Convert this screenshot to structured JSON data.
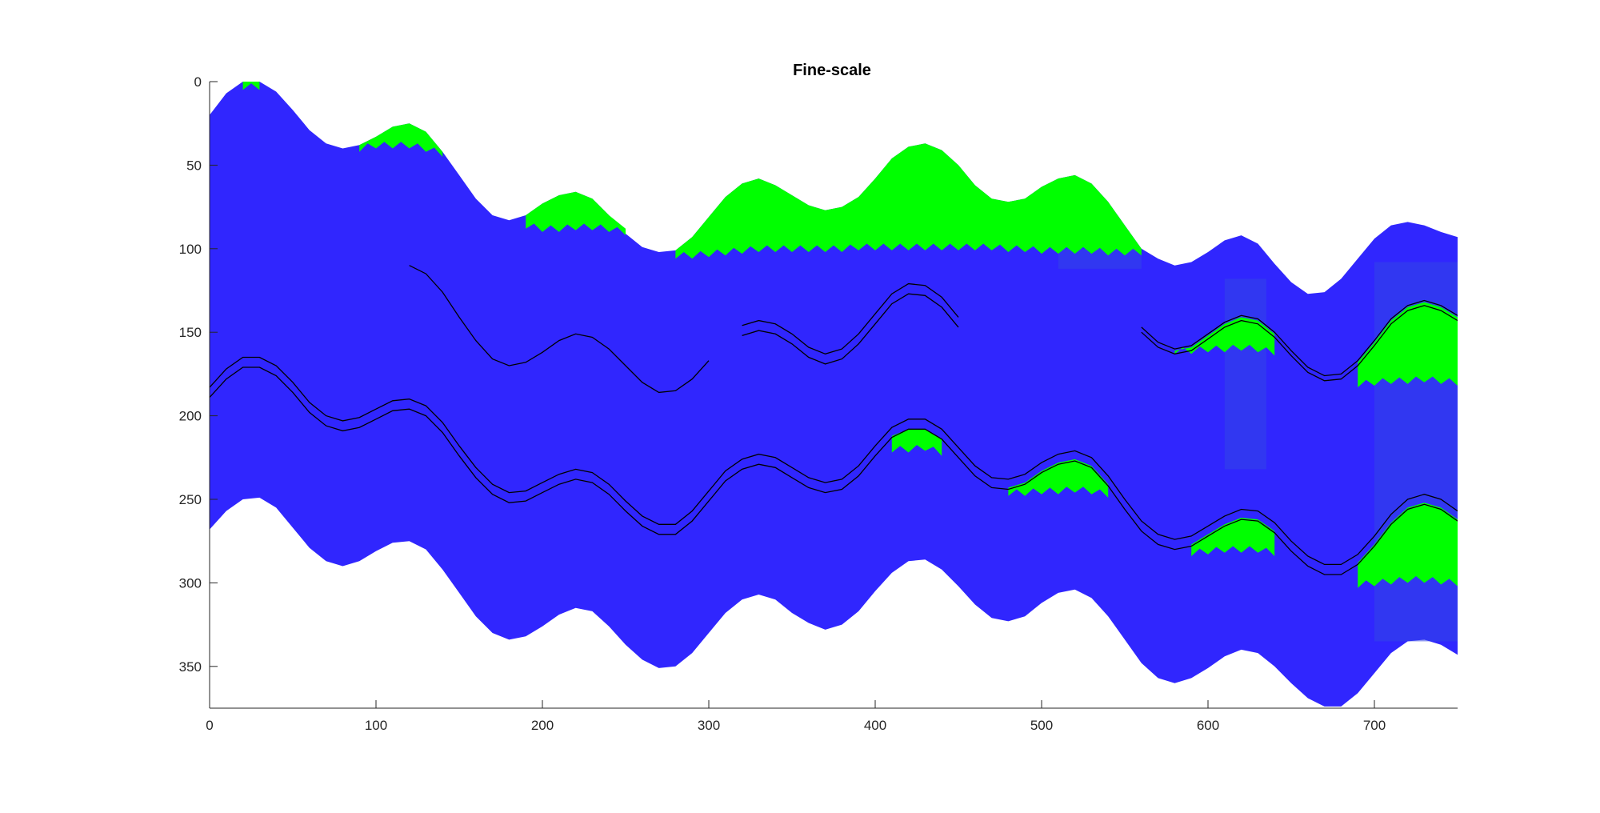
{
  "chart_data": {
    "type": "area",
    "title": "Fine-scale",
    "xlabel": "",
    "ylabel": "",
    "xlim": [
      0,
      750
    ],
    "ylim": [
      0,
      375
    ],
    "y_reversed": true,
    "grid": false,
    "legend": "none",
    "xticks": [
      0,
      100,
      200,
      300,
      400,
      500,
      600,
      700
    ],
    "yticks": [
      0,
      50,
      100,
      150,
      200,
      250,
      300,
      350
    ],
    "colors": {
      "domain": "#3026FE",
      "overlay": "#3346E6",
      "feature": "#00FF00",
      "contour": "#000000",
      "axis": "#262626"
    },
    "domain_top": {
      "x": [
        0,
        10,
        20,
        30,
        40,
        50,
        60,
        70,
        80,
        90,
        100,
        110,
        120,
        130,
        140,
        150,
        160,
        170,
        180,
        190,
        200,
        210,
        220,
        230,
        240,
        250,
        260,
        270,
        280,
        290,
        300,
        310,
        320,
        330,
        340,
        350,
        360,
        370,
        380,
        390,
        400,
        410,
        420,
        430,
        440,
        450,
        460,
        470,
        480,
        490,
        500,
        510,
        520,
        530,
        540,
        550,
        560,
        570,
        580,
        590,
        600,
        610,
        620,
        630,
        640,
        650,
        660,
        670,
        680,
        690,
        700,
        710,
        720,
        730,
        740,
        750
      ],
      "y": [
        20,
        7,
        0,
        0,
        6,
        17,
        29,
        37,
        40,
        38,
        33,
        27,
        25,
        30,
        42,
        56,
        70,
        80,
        83,
        80,
        73,
        68,
        66,
        70,
        80,
        91,
        99,
        102,
        101,
        93,
        81,
        69,
        61,
        58,
        62,
        68,
        74,
        77,
        75,
        69,
        58,
        46,
        39,
        37,
        41,
        50,
        62,
        70,
        72,
        70,
        63,
        58,
        56,
        61,
        72,
        86,
        100,
        106,
        110,
        108,
        102,
        95,
        92,
        97,
        109,
        120,
        127,
        126,
        118,
        106,
        94,
        86,
        84,
        86,
        90,
        93
      ]
    },
    "domain_bottom": {
      "x": [
        0,
        10,
        20,
        30,
        40,
        50,
        60,
        70,
        80,
        90,
        100,
        110,
        120,
        130,
        140,
        150,
        160,
        170,
        180,
        190,
        200,
        210,
        220,
        230,
        240,
        250,
        260,
        270,
        280,
        290,
        300,
        310,
        320,
        330,
        340,
        350,
        360,
        370,
        380,
        390,
        400,
        410,
        420,
        430,
        440,
        450,
        460,
        470,
        480,
        490,
        500,
        510,
        520,
        530,
        540,
        550,
        560,
        570,
        580,
        590,
        600,
        610,
        620,
        630,
        640,
        650,
        660,
        670,
        680,
        690,
        700,
        710,
        720,
        730,
        740,
        750
      ],
      "y": [
        268,
        257,
        250,
        249,
        255,
        267,
        279,
        287,
        290,
        287,
        281,
        276,
        275,
        280,
        292,
        306,
        320,
        330,
        334,
        332,
        326,
        319,
        315,
        317,
        326,
        337,
        346,
        351,
        350,
        342,
        330,
        318,
        310,
        307,
        310,
        318,
        324,
        328,
        325,
        317,
        305,
        294,
        287,
        286,
        292,
        302,
        313,
        321,
        323,
        320,
        312,
        306,
        304,
        309,
        320,
        334,
        348,
        357,
        360,
        357,
        351,
        344,
        340,
        342,
        350,
        360,
        369,
        374,
        374,
        366,
        354,
        342,
        335,
        334,
        337,
        343
      ]
    },
    "upper_line": {
      "x": [
        120,
        130,
        140,
        150,
        160,
        170,
        180,
        190,
        200,
        210,
        220,
        230,
        240,
        250,
        260,
        270,
        280,
        290,
        300
      ],
      "y": [
        110,
        115,
        126,
        141,
        155,
        166,
        170,
        168,
        162,
        155,
        151,
        153,
        160,
        170,
        180,
        186,
        185,
        178,
        167
      ]
    },
    "upper_band_mid": {
      "x": [
        320,
        330,
        340,
        350,
        360,
        370,
        380,
        390,
        400,
        410,
        420,
        430,
        440,
        450
      ],
      "y": [
        149,
        146,
        148,
        154,
        162,
        166,
        163,
        154,
        142,
        130,
        124,
        125,
        132,
        144
      ]
    },
    "upper_band_right": {
      "x": [
        560,
        570,
        580,
        590,
        600,
        610,
        620,
        630,
        640,
        650,
        660,
        670,
        680,
        690,
        700,
        710,
        720,
        730,
        740,
        750
      ],
      "y": [
        148,
        157,
        161,
        159,
        152,
        145,
        141,
        143,
        151,
        162,
        172,
        177,
        176,
        168,
        156,
        143,
        135,
        132,
        135,
        141
      ]
    },
    "lower_band": {
      "x": [
        0,
        10,
        20,
        30,
        40,
        50,
        60,
        70,
        80,
        90,
        100,
        110,
        120,
        130,
        140,
        150,
        160,
        170,
        180,
        190,
        200,
        210,
        220,
        230,
        240,
        250,
        260,
        270,
        280,
        290,
        300,
        310,
        320,
        330,
        340,
        350,
        360,
        370,
        380,
        390,
        400,
        410,
        420,
        430,
        440,
        450,
        460,
        470,
        480,
        490,
        500,
        510,
        520,
        530,
        540,
        550,
        560,
        570,
        580,
        590,
        600,
        610,
        620,
        630,
        640,
        650,
        660,
        670,
        680,
        690,
        700,
        710,
        720,
        730,
        740,
        750
      ],
      "y": [
        186,
        175,
        168,
        168,
        173,
        183,
        195,
        203,
        206,
        204,
        199,
        194,
        193,
        197,
        207,
        221,
        234,
        244,
        249,
        248,
        243,
        238,
        235,
        237,
        244,
        254,
        263,
        268,
        268,
        260,
        248,
        236,
        229,
        226,
        228,
        234,
        240,
        243,
        241,
        233,
        221,
        210,
        205,
        205,
        211,
        222,
        233,
        240,
        241,
        238,
        231,
        226,
        224,
        228,
        239,
        253,
        266,
        274,
        277,
        275,
        269,
        263,
        259,
        260,
        267,
        278,
        287,
        292,
        292,
        286,
        275,
        262,
        253,
        250,
        253,
        260
      ]
    },
    "feature_patches": [
      {
        "x": [
          20,
          30
        ],
        "top": [
          0,
          0
        ],
        "bottom": [
          5,
          5
        ]
      },
      {
        "x": [
          90,
          100,
          110,
          120,
          130,
          140
        ],
        "top": [
          38,
          33,
          27,
          25,
          30,
          42
        ],
        "bottom": [
          42,
          40,
          40,
          40,
          42,
          45
        ]
      },
      {
        "x": [
          190,
          200,
          210,
          220,
          230,
          240,
          250
        ],
        "top": [
          80,
          73,
          68,
          66,
          70,
          80,
          88
        ],
        "bottom": [
          88,
          90,
          90,
          89,
          89,
          90,
          92
        ]
      },
      {
        "x": [
          280,
          290,
          300,
          310,
          320,
          330,
          340,
          350,
          360,
          370,
          380,
          390,
          400,
          410,
          420,
          430,
          440,
          450,
          460,
          470,
          480,
          490,
          500,
          510,
          520,
          530,
          540,
          550,
          560
        ],
        "top": [
          101,
          93,
          81,
          69,
          61,
          58,
          62,
          68,
          74,
          77,
          75,
          69,
          58,
          46,
          39,
          37,
          41,
          50,
          62,
          70,
          72,
          70,
          63,
          58,
          56,
          61,
          72,
          86,
          100
        ],
        "bottom": [
          106,
          106,
          105,
          104,
          103,
          102,
          102,
          102,
          102,
          102,
          102,
          101,
          101,
          101,
          101,
          101,
          101,
          101,
          101,
          101,
          102,
          102,
          103,
          103,
          103,
          103,
          104,
          104,
          104
        ]
      },
      {
        "x": [
          580,
          590,
          600,
          610,
          620,
          630,
          640
        ],
        "top": [
          161,
          159,
          152,
          145,
          141,
          143,
          151
        ],
        "bottom": [
          163,
          163,
          162,
          162,
          161,
          162,
          164
        ]
      },
      {
        "x": [
          690,
          700,
          710,
          720,
          730,
          740,
          750
        ],
        "top": [
          168,
          156,
          143,
          135,
          132,
          135,
          141
        ],
        "bottom": [
          183,
          182,
          181,
          181,
          180,
          181,
          182
        ]
      },
      {
        "x": [
          410,
          420,
          430,
          440
        ],
        "top": [
          212,
          208,
          208,
          214
        ],
        "bottom": [
          222,
          222,
          221,
          224
        ]
      },
      {
        "x": [
          480,
          490,
          500,
          510,
          520,
          530,
          540
        ],
        "top": [
          243,
          240,
          233,
          228,
          226,
          230,
          241
        ],
        "bottom": [
          248,
          248,
          247,
          247,
          246,
          247,
          249
        ]
      },
      {
        "x": [
          590,
          600,
          610,
          620,
          630,
          640
        ],
        "top": [
          277,
          271,
          265,
          261,
          262,
          269
        ],
        "bottom": [
          284,
          283,
          282,
          282,
          282,
          284
        ]
      },
      {
        "x": [
          690,
          700,
          710,
          720,
          730,
          740,
          750
        ],
        "top": [
          288,
          277,
          264,
          255,
          252,
          255,
          262
        ],
        "bottom": [
          303,
          302,
          301,
          300,
          300,
          301,
          302
        ]
      }
    ],
    "overlay_columns": [
      {
        "x": [
          610,
          635
        ],
        "y": [
          118,
          232
        ]
      },
      {
        "x": [
          700,
          750
        ],
        "y": [
          108,
          335
        ]
      },
      {
        "x": [
          510,
          560
        ],
        "y": [
          100,
          112
        ]
      }
    ]
  }
}
